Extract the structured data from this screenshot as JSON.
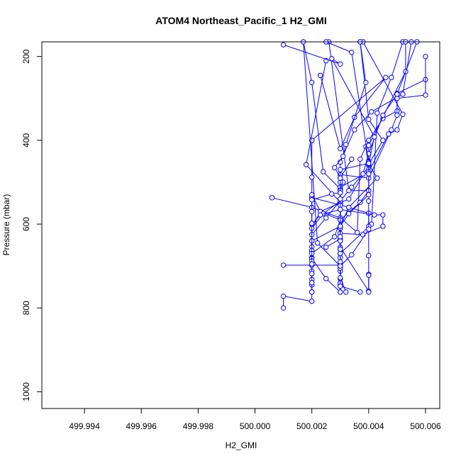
{
  "chart_data": {
    "type": "line",
    "title": "ATOM4 Northeast_Pacific_1 H2_GMI",
    "xlabel": "H2_GMI",
    "ylabel": "Pressure (mbar)",
    "xlim": [
      499.9925,
      500.0065
    ],
    "ylim": [
      1040,
      165
    ],
    "y_inverted": true,
    "x_ticks": [
      499.994,
      499.996,
      499.998,
      500.0,
      500.002,
      500.004,
      500.006
    ],
    "x_tick_labels": [
      "499.994",
      "499.996",
      "499.998",
      "500.000",
      "500.002",
      "500.004",
      "500.006"
    ],
    "y_ticks": [
      200,
      400,
      600,
      800,
      1000
    ],
    "y_tick_labels": [
      "200",
      "400",
      "600",
      "800",
      "1000"
    ],
    "color": "#0000ff",
    "marker": "open-circle",
    "grid": false,
    "series": [
      {
        "x": [
          500.001,
          500.001,
          500.002,
          500.002,
          500.002,
          500.002,
          500.002,
          500.002,
          500.002,
          500.002,
          500.002,
          500.002,
          500.002,
          500.0023,
          500.0033,
          500.004,
          500.0039
        ],
        "y": [
          800,
          772,
          784,
          762,
          745,
          732,
          712,
          698,
          680,
          664,
          654,
          640,
          610,
          570,
          540,
          460,
          415
        ]
      },
      {
        "x": [
          500.001,
          500.003,
          500.003,
          500.003,
          500.003,
          500.003,
          500.003,
          500.003,
          500.003,
          500.003,
          500.003,
          500.003,
          500.003,
          500.003,
          500.003,
          500.0035,
          500.0041,
          500.0052,
          500.0055
        ],
        "y": [
          698,
          698,
          712,
          730,
          745,
          762,
          680,
          660,
          640,
          610,
          585,
          550,
          515,
          490,
          452,
          375,
          332,
          290,
          165
        ]
      },
      {
        "x": [
          500.002,
          500.002,
          500.002,
          500.002,
          500.002,
          500.0025,
          500.003,
          500.003,
          500.003,
          500.003,
          500.0041,
          500.0043,
          500.0048,
          500.0052
        ],
        "y": [
          762,
          740,
          718,
          698,
          682,
          730,
          762,
          740,
          705,
          670,
          600,
          335,
          250,
          165
        ]
      },
      {
        "x": [
          500.0037,
          500.003,
          500.003,
          500.0022,
          500.0017,
          500.002,
          500.0024,
          500.003,
          500.003,
          500.003,
          500.003,
          500.004,
          500.004
        ],
        "y": [
          762,
          748,
          700,
          645,
          165,
          262,
          475,
          516,
          548,
          610,
          655,
          760,
          720
        ]
      },
      {
        "x": [
          500.004,
          500.004,
          500.004,
          500.004,
          500.004,
          500.003,
          500.002,
          500.002,
          500.002,
          500.0046,
          500.0035,
          500.003,
          500.0023
        ],
        "y": [
          762,
          722,
          675,
          605,
          574,
          554,
          537,
          488,
          400,
          250,
          345,
          420,
          245
        ]
      },
      {
        "x": [
          500.0032,
          500.003,
          500.003,
          500.003,
          500.0038,
          500.0045,
          500.0045,
          500.0042,
          500.003,
          500.003,
          500.0018,
          500.0025
        ],
        "y": [
          762,
          728,
          690,
          622,
          625,
          605,
          578,
          578,
          565,
          548,
          458,
          210
        ]
      },
      {
        "x": [
          500.0006,
          500.002,
          500.003,
          500.0036,
          500.0037,
          500.004,
          500.0045,
          500.005,
          500.005,
          500.006
        ],
        "y": [
          537,
          560,
          585,
          620,
          445,
          400,
          348,
          330,
          288,
          255
        ]
      },
      {
        "x": [
          500.002,
          500.002,
          500.0023,
          500.003,
          500.003,
          500.003,
          500.004,
          500.0048,
          500.005,
          500.005,
          500.006,
          500.006
        ],
        "y": [
          663,
          530,
          570,
          590,
          525,
          482,
          490,
          375,
          340,
          300,
          292,
          200
        ]
      },
      {
        "x": [
          500.003,
          500.003,
          500.0034,
          500.004,
          500.004,
          500.004,
          500.004,
          500.004,
          500.0053,
          500.0053
        ],
        "y": [
          705,
          700,
          673,
          612,
          545,
          520,
          450,
          412,
          236,
          165
        ]
      },
      {
        "x": [
          500.002,
          500.0024,
          500.003,
          500.003,
          500.004,
          500.0047,
          500.005,
          500.0052,
          500.0038
        ],
        "y": [
          610,
          575,
          545,
          512,
          475,
          385,
          375,
          338,
          165
        ]
      },
      {
        "x": [
          500.002,
          500.0025,
          500.0034,
          500.0038,
          500.004,
          500.0045,
          500.005,
          500.0057
        ],
        "y": [
          625,
          585,
          512,
          480,
          432,
          340,
          290,
          165
        ]
      },
      {
        "x": [
          500.002,
          500.003,
          500.0033,
          500.0043,
          500.004,
          500.0045,
          500.004,
          500.0037
        ],
        "y": [
          640,
          605,
          560,
          490,
          457,
          400,
          350,
          165
        ]
      },
      {
        "x": [
          500.002,
          500.002,
          500.0028,
          500.003,
          500.0037,
          500.004,
          500.0033,
          500.0026
        ],
        "y": [
          688,
          670,
          630,
          590,
          548,
          520,
          520,
          165
        ]
      },
      {
        "x": [
          500.0025,
          500.003,
          500.003,
          500.003,
          500.003,
          500.0031,
          500.0028,
          500.0031,
          500.0032,
          500.0039,
          500.0037
        ],
        "y": [
          655,
          635,
          610,
          555,
          520,
          500,
          465,
          438,
          410,
          262,
          165
        ]
      },
      {
        "x": [
          500.003,
          500.003,
          500.003,
          500.003,
          500.003,
          500.0033,
          500.004,
          500.004,
          500.004,
          500.0034,
          500.0025
        ],
        "y": [
          670,
          660,
          640,
          630,
          605,
          575,
          530,
          480,
          452,
          190,
          165
        ]
      },
      {
        "x": [
          500.002,
          500.002,
          500.0023,
          500.003,
          500.003,
          500.003,
          500.003,
          500.003,
          500.004,
          500.0042,
          500.0027,
          500.003,
          500.001
        ],
        "y": [
          695,
          600,
          578,
          565,
          540,
          520,
          500,
          470,
          455,
          392,
          205,
          218,
          172
        ]
      },
      {
        "x": [
          500.002,
          500.002,
          500.002,
          500.0027,
          500.003,
          500.003,
          500.0034
        ],
        "y": [
          598,
          570,
          542,
          528,
          525,
          490,
          445
        ]
      }
    ]
  }
}
